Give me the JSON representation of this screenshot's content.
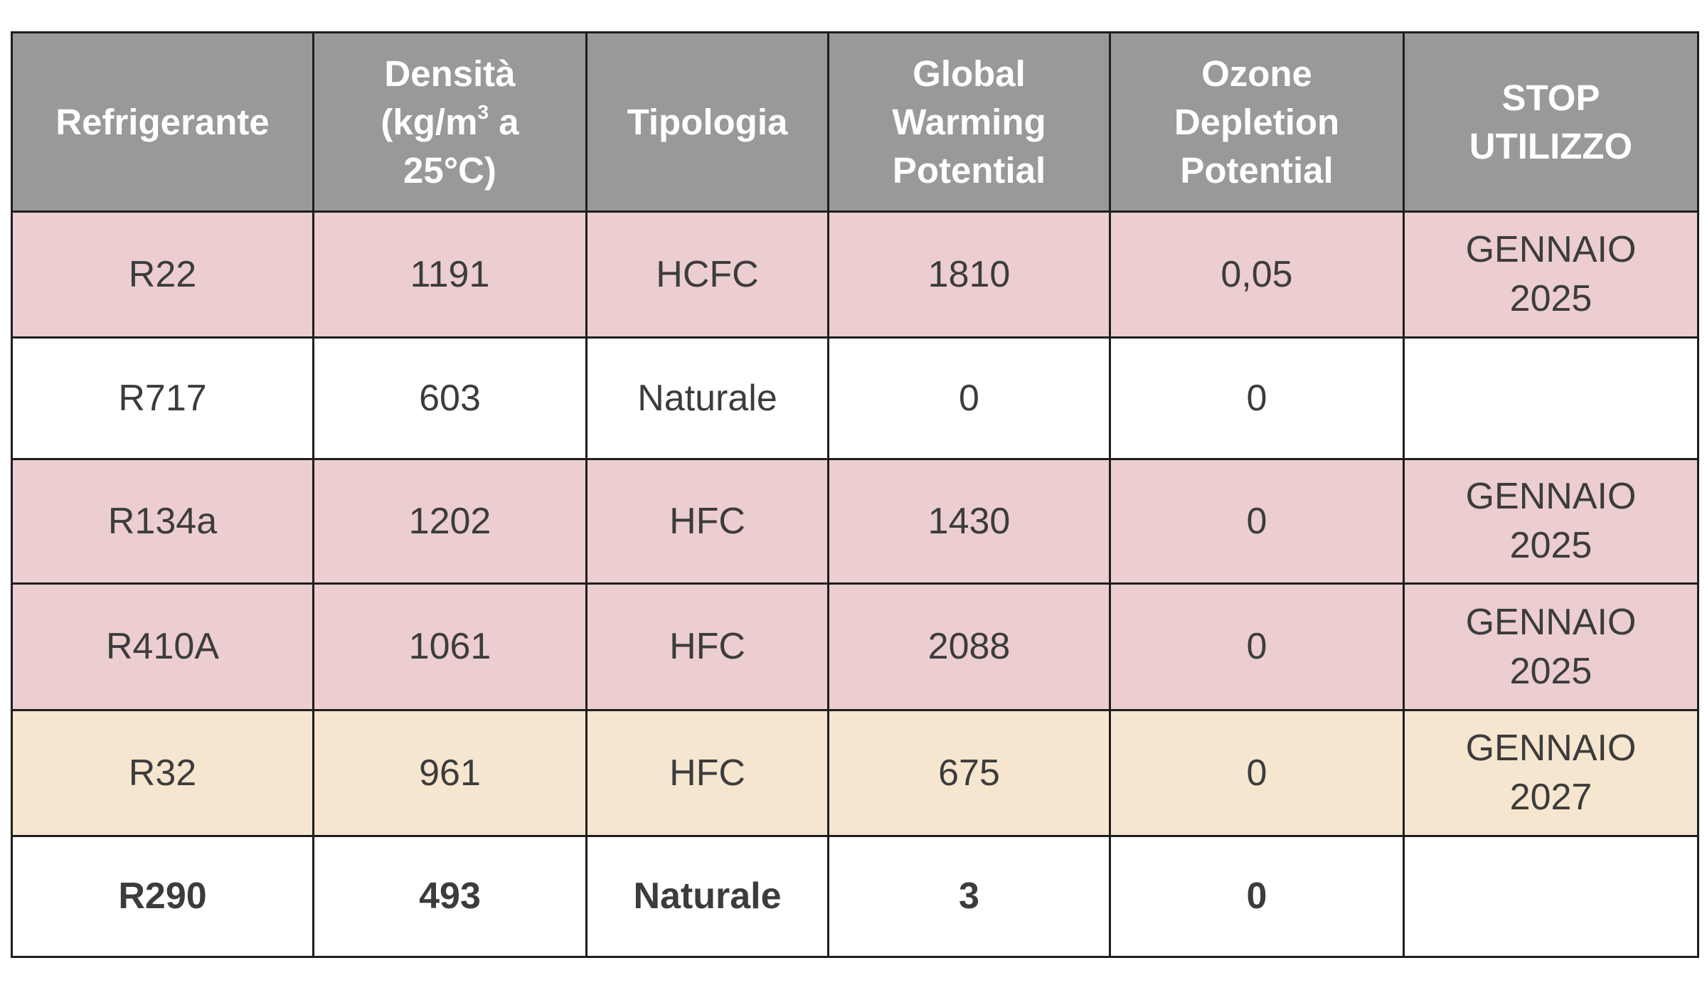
{
  "table": {
    "headers": {
      "refrigerante": "Refrigerante",
      "densita": {
        "line1": "Densità",
        "line2_before": "(kg/m",
        "line2_sup": "3",
        "line2_after": " a",
        "line3": "25°C)"
      },
      "tipologia": "Tipologia",
      "gwp": [
        "Global",
        "Warming",
        "Potential"
      ],
      "odp": [
        "Ozone",
        "Depletion",
        "Potential"
      ],
      "stop": [
        "STOP",
        "UTILIZZO"
      ]
    },
    "rows": [
      {
        "refrigerante": "R22",
        "densita": "1191",
        "tipologia": "HCFC",
        "gwp": "1810",
        "odp": "0,05",
        "stop": [
          "GENNAIO",
          "2025"
        ],
        "background": "#ecced0",
        "bold": false
      },
      {
        "refrigerante": "R717",
        "densita": "603",
        "tipologia": "Naturale",
        "gwp": "0",
        "odp": "0",
        "stop": [],
        "background": "#ffffff",
        "bold": false
      },
      {
        "refrigerante": "R134a",
        "densita": "1202",
        "tipologia": "HFC",
        "gwp": "1430",
        "odp": "0",
        "stop": [
          "GENNAIO",
          "2025"
        ],
        "background": "#ecced0",
        "bold": false
      },
      {
        "refrigerante": "R410A",
        "densita": "1061",
        "tipologia": "HFC",
        "gwp": "2088",
        "odp": "0",
        "stop": [
          "GENNAIO",
          "2025"
        ],
        "background": "#ecced0",
        "bold": false
      },
      {
        "refrigerante": "R32",
        "densita": "961",
        "tipologia": "HFC",
        "gwp": "675",
        "odp": "0",
        "stop": [
          "GENNAIO",
          "2027"
        ],
        "background": "#f6e6cf",
        "bold": false
      },
      {
        "refrigerante": "R290",
        "densita": "493",
        "tipologia": "Naturale",
        "gwp": "3",
        "odp": "0",
        "stop": [],
        "background": "#ffffff",
        "bold": true
      }
    ]
  },
  "colors": {
    "header_background": "#999999",
    "header_text": "#ffffff",
    "body_text": "#3c3c3c",
    "border": "#1e1e1e",
    "row_pink": "#ecced0",
    "row_cream": "#f6e6cf",
    "row_white": "#ffffff"
  }
}
